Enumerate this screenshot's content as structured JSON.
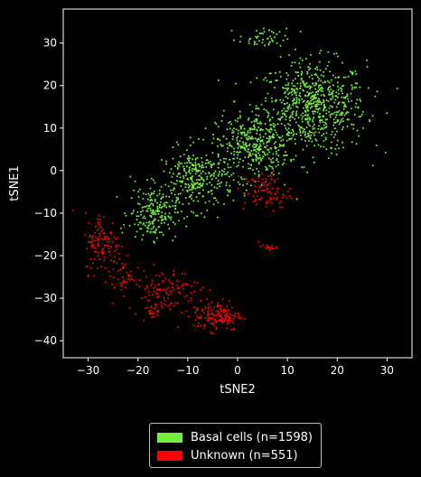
{
  "chart_data": {
    "type": "scatter",
    "title": "",
    "xlabel": "tSNE2",
    "ylabel": "tSNE1",
    "xlim": [
      -35,
      35
    ],
    "ylim": [
      -44,
      38
    ],
    "xticks": [
      -30,
      -20,
      -10,
      0,
      10,
      20,
      30
    ],
    "yticks": [
      -40,
      -30,
      -20,
      -10,
      0,
      10,
      20,
      30
    ],
    "grid": false,
    "legend_position": "bottom-center",
    "series": [
      {
        "name": "Basal cells (n=1598)",
        "color": "#73f03c",
        "count": 1598,
        "clusters": [
          {
            "cx": 15,
            "cy": 15,
            "sx": 9,
            "sy": 9,
            "n": 700
          },
          {
            "cx": 3,
            "cy": 6,
            "sx": 6,
            "sy": 6,
            "n": 350
          },
          {
            "cx": -8,
            "cy": -2,
            "sx": 6,
            "sy": 6,
            "n": 300
          },
          {
            "cx": -17,
            "cy": -10,
            "sx": 4,
            "sy": 5,
            "n": 200
          },
          {
            "cx": 5,
            "cy": 31,
            "sx": 4,
            "sy": 2,
            "n": 48
          }
        ]
      },
      {
        "name": "Unknown (n=551)",
        "color": "#ff0000",
        "count": 551,
        "clusters": [
          {
            "cx": -4,
            "cy": -34,
            "sx": 4,
            "sy": 3,
            "n": 150
          },
          {
            "cx": -27,
            "cy": -17,
            "sx": 3,
            "sy": 6,
            "n": 120
          },
          {
            "cx": -15,
            "cy": -28,
            "sx": 6,
            "sy": 4,
            "n": 120
          },
          {
            "cx": 6,
            "cy": -5,
            "sx": 4,
            "sy": 4,
            "n": 90
          },
          {
            "cx": -17,
            "cy": -33,
            "sx": 1,
            "sy": 1,
            "n": 20
          },
          {
            "cx": 6,
            "cy": -18,
            "sx": 1.5,
            "sy": 0.6,
            "n": 15
          },
          {
            "cx": -23,
            "cy": -25,
            "sx": 2,
            "sy": 3,
            "n": 36
          }
        ]
      }
    ]
  }
}
